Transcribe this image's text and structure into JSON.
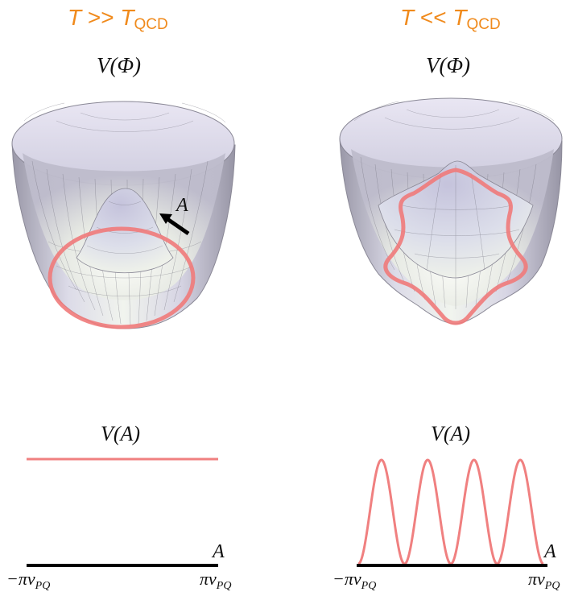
{
  "panels": {
    "left": {
      "regime": {
        "T": "T",
        "relation": ">>",
        "Tc": "T",
        "Tc_sub": "QCD"
      },
      "surface_label": "V(Φ)",
      "arrow_label": "A",
      "potential_label": "V(A)",
      "axis_label": "A",
      "tick_min": {
        "main": "−πv",
        "sub": "PQ"
      },
      "tick_max": {
        "main": "πv",
        "sub": "PQ"
      },
      "curve": {
        "type": "flat",
        "level": 1
      }
    },
    "right": {
      "regime": {
        "T": "T",
        "relation": "<<",
        "Tc": "T",
        "Tc_sub": "QCD"
      },
      "surface_label": "V(Φ)",
      "potential_label": "V(A)",
      "axis_label": "A",
      "tick_min": {
        "main": "−πv",
        "sub": "PQ"
      },
      "tick_max": {
        "main": "πv",
        "sub": "PQ"
      },
      "curve": {
        "type": "periodic",
        "peaks": 4,
        "amplitude": 1
      }
    }
  },
  "colors": {
    "regime_text": "#f08a1c",
    "curve": "#f08080",
    "axis": "#000000",
    "surface_light": "#f2f6f0",
    "surface_mid": "#c9c7da",
    "surface_dark": "#8f8e9c"
  }
}
